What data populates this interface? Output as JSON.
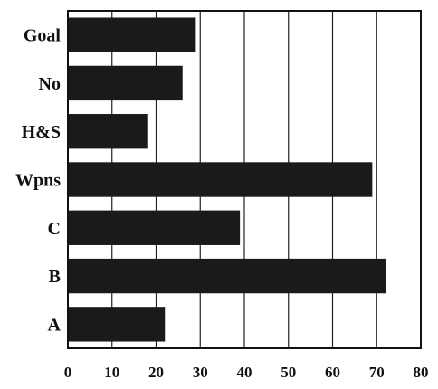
{
  "chart_data": {
    "type": "bar",
    "orientation": "horizontal",
    "categories": [
      "Goal",
      "No",
      "H&S",
      "Wpns",
      "C",
      "B",
      "A"
    ],
    "values": [
      29,
      26,
      18,
      69,
      39,
      72,
      22
    ],
    "xlim": [
      0,
      80
    ],
    "xticks": [
      "0",
      "10",
      "20",
      "30",
      "40",
      "50",
      "60",
      "70",
      "80"
    ],
    "grid": "vertical",
    "title": "",
    "xlabel": "",
    "ylabel": "",
    "bar_color": "#1a1a1a"
  }
}
